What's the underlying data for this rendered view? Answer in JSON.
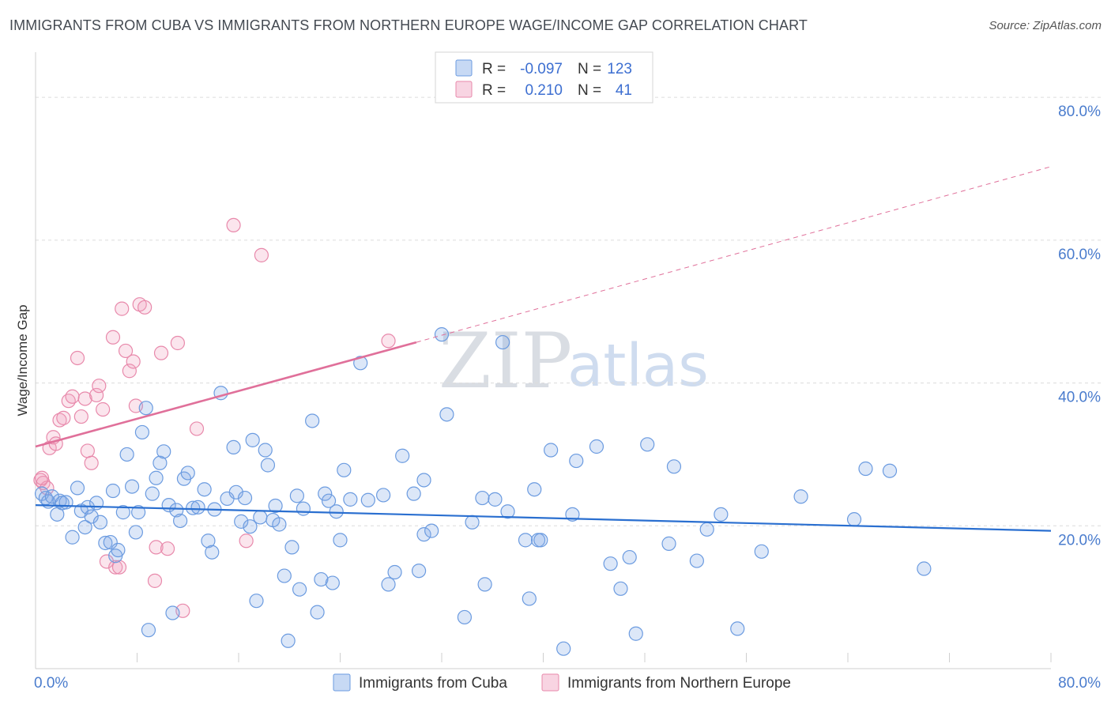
{
  "title": "IMMIGRANTS FROM CUBA VS IMMIGRANTS FROM NORTHERN EUROPE WAGE/INCOME GAP CORRELATION CHART",
  "source": "Source: ZipAtlas.com",
  "watermark": {
    "zip": "ZIP",
    "atlas": "atlas"
  },
  "colors": {
    "blue": "#6b9be0",
    "blue_fill": "rgba(130,170,230,0.28)",
    "blue_line": "#2a6fd0",
    "pink": "#e889ab",
    "pink_fill": "rgba(240,160,190,0.28)",
    "pink_line": "#e0709a",
    "tick": "#4a7ccd"
  },
  "legend": {
    "r_label": "R =",
    "n_label": "N =",
    "rows": [
      {
        "r": "-0.097",
        "n": "123"
      },
      {
        "r": "0.210",
        "n": "41"
      }
    ]
  },
  "chart_data": {
    "type": "scatter",
    "xlabel": "",
    "ylabel": "Wage/Income Gap",
    "xlim": [
      0,
      80
    ],
    "ylim": [
      0,
      85
    ],
    "y_ticks": [
      "20.0%",
      "40.0%",
      "60.0%",
      "80.0%"
    ],
    "y_tick_values": [
      20,
      40,
      60,
      80
    ],
    "x_tick_labels": [
      "0.0%",
      "80.0%"
    ],
    "x_tick_values": [
      0,
      80
    ],
    "grid": true,
    "series": [
      {
        "name": "Immigrants from Cuba",
        "trend": {
          "x": [
            0,
            80
          ],
          "y": [
            22.9,
            19.3
          ],
          "dashed_from": null
        },
        "points": [
          [
            0.5,
            24.5
          ],
          [
            0.8,
            23.9
          ],
          [
            1.0,
            23.4
          ],
          [
            1.3,
            24.1
          ],
          [
            1.7,
            21.6
          ],
          [
            1.9,
            23.5
          ],
          [
            2.1,
            23.2
          ],
          [
            2.4,
            23.3
          ],
          [
            2.9,
            18.4
          ],
          [
            3.3,
            25.3
          ],
          [
            3.6,
            22.1
          ],
          [
            3.9,
            19.8
          ],
          [
            4.1,
            22.6
          ],
          [
            4.4,
            21.3
          ],
          [
            4.8,
            23.2
          ],
          [
            5.1,
            20.5
          ],
          [
            5.5,
            17.6
          ],
          [
            5.9,
            17.7
          ],
          [
            6.1,
            24.9
          ],
          [
            6.3,
            15.8
          ],
          [
            6.5,
            16.6
          ],
          [
            6.9,
            21.9
          ],
          [
            7.2,
            30.0
          ],
          [
            7.6,
            25.5
          ],
          [
            7.9,
            19.1
          ],
          [
            8.1,
            21.9
          ],
          [
            8.4,
            33.1
          ],
          [
            8.7,
            36.5
          ],
          [
            8.9,
            5.4
          ],
          [
            9.2,
            24.5
          ],
          [
            9.5,
            26.7
          ],
          [
            9.8,
            28.8
          ],
          [
            10.1,
            30.4
          ],
          [
            10.5,
            22.9
          ],
          [
            10.8,
            7.8
          ],
          [
            11.1,
            22.2
          ],
          [
            11.4,
            20.7
          ],
          [
            11.7,
            26.6
          ],
          [
            12.0,
            27.4
          ],
          [
            12.4,
            22.5
          ],
          [
            12.8,
            22.6
          ],
          [
            13.3,
            25.1
          ],
          [
            13.6,
            17.9
          ],
          [
            13.9,
            16.3
          ],
          [
            14.1,
            22.3
          ],
          [
            14.6,
            38.6
          ],
          [
            15.1,
            23.8
          ],
          [
            15.6,
            31.0
          ],
          [
            15.8,
            24.7
          ],
          [
            16.2,
            20.6
          ],
          [
            16.5,
            23.9
          ],
          [
            16.9,
            19.9
          ],
          [
            17.1,
            32.0
          ],
          [
            17.4,
            9.5
          ],
          [
            17.7,
            21.2
          ],
          [
            18.1,
            30.6
          ],
          [
            18.3,
            28.5
          ],
          [
            18.7,
            20.8
          ],
          [
            18.9,
            22.8
          ],
          [
            19.2,
            20.2
          ],
          [
            19.6,
            13.0
          ],
          [
            19.9,
            3.9
          ],
          [
            20.2,
            17.0
          ],
          [
            20.6,
            24.2
          ],
          [
            20.8,
            11.1
          ],
          [
            21.1,
            22.4
          ],
          [
            21.8,
            34.7
          ],
          [
            22.2,
            7.9
          ],
          [
            22.5,
            12.5
          ],
          [
            22.8,
            24.5
          ],
          [
            23.1,
            23.5
          ],
          [
            23.4,
            12.0
          ],
          [
            23.7,
            22.0
          ],
          [
            24.0,
            18.0
          ],
          [
            24.3,
            27.8
          ],
          [
            24.8,
            23.7
          ],
          [
            25.6,
            42.8
          ],
          [
            26.2,
            23.6
          ],
          [
            27.4,
            24.3
          ],
          [
            27.8,
            11.8
          ],
          [
            28.3,
            13.5
          ],
          [
            28.9,
            29.8
          ],
          [
            29.8,
            24.5
          ],
          [
            30.2,
            13.7
          ],
          [
            30.6,
            26.4
          ],
          [
            30.6,
            18.8
          ],
          [
            31.2,
            19.3
          ],
          [
            32.0,
            46.8
          ],
          [
            32.4,
            35.6
          ],
          [
            33.8,
            7.2
          ],
          [
            34.4,
            20.5
          ],
          [
            35.2,
            23.9
          ],
          [
            35.4,
            11.8
          ],
          [
            36.2,
            23.7
          ],
          [
            36.8,
            45.7
          ],
          [
            37.2,
            22.0
          ],
          [
            38.6,
            18.0
          ],
          [
            38.9,
            9.8
          ],
          [
            39.3,
            25.1
          ],
          [
            39.6,
            18.0
          ],
          [
            39.8,
            18.0
          ],
          [
            40.6,
            30.6
          ],
          [
            41.6,
            2.8
          ],
          [
            42.3,
            21.6
          ],
          [
            42.6,
            29.1
          ],
          [
            44.2,
            31.1
          ],
          [
            45.3,
            14.7
          ],
          [
            46.1,
            11.2
          ],
          [
            46.8,
            15.6
          ],
          [
            47.3,
            4.9
          ],
          [
            48.2,
            31.4
          ],
          [
            49.9,
            17.5
          ],
          [
            50.3,
            28.3
          ],
          [
            52.1,
            15.1
          ],
          [
            52.9,
            19.5
          ],
          [
            54.0,
            21.6
          ],
          [
            55.3,
            5.6
          ],
          [
            57.2,
            16.4
          ],
          [
            60.3,
            24.1
          ],
          [
            64.5,
            20.9
          ],
          [
            65.4,
            28.0
          ],
          [
            67.3,
            27.7
          ],
          [
            70.0,
            14.0
          ]
        ]
      },
      {
        "name": "Immigrants from Northern Europe",
        "trend": {
          "x": [
            0,
            30,
            80
          ],
          "y": [
            31.1,
            45.7,
            70.3
          ],
          "dashed_from": 30
        },
        "points": [
          [
            0.4,
            26.4
          ],
          [
            0.6,
            26.0
          ],
          [
            0.9,
            25.3
          ],
          [
            1.1,
            30.9
          ],
          [
            1.4,
            32.4
          ],
          [
            1.6,
            31.5
          ],
          [
            1.9,
            34.8
          ],
          [
            2.2,
            35.1
          ],
          [
            2.6,
            37.5
          ],
          [
            2.9,
            38.1
          ],
          [
            3.3,
            43.5
          ],
          [
            3.6,
            35.3
          ],
          [
            3.9,
            37.8
          ],
          [
            4.1,
            30.5
          ],
          [
            4.4,
            28.8
          ],
          [
            4.8,
            38.3
          ],
          [
            5.0,
            39.6
          ],
          [
            5.3,
            36.3
          ],
          [
            5.6,
            15.0
          ],
          [
            6.1,
            46.4
          ],
          [
            6.3,
            14.2
          ],
          [
            6.6,
            14.2
          ],
          [
            6.8,
            50.4
          ],
          [
            7.1,
            44.5
          ],
          [
            7.4,
            41.7
          ],
          [
            7.7,
            43.0
          ],
          [
            7.9,
            36.8
          ],
          [
            8.2,
            51.0
          ],
          [
            8.6,
            50.6
          ],
          [
            9.4,
            12.3
          ],
          [
            9.5,
            17.0
          ],
          [
            9.9,
            44.2
          ],
          [
            10.4,
            16.8
          ],
          [
            11.2,
            45.6
          ],
          [
            11.6,
            8.1
          ],
          [
            12.7,
            33.6
          ],
          [
            15.6,
            62.1
          ],
          [
            16.6,
            17.9
          ],
          [
            17.8,
            57.9
          ],
          [
            27.8,
            45.9
          ],
          [
            0.5,
            26.7
          ]
        ]
      }
    ]
  }
}
